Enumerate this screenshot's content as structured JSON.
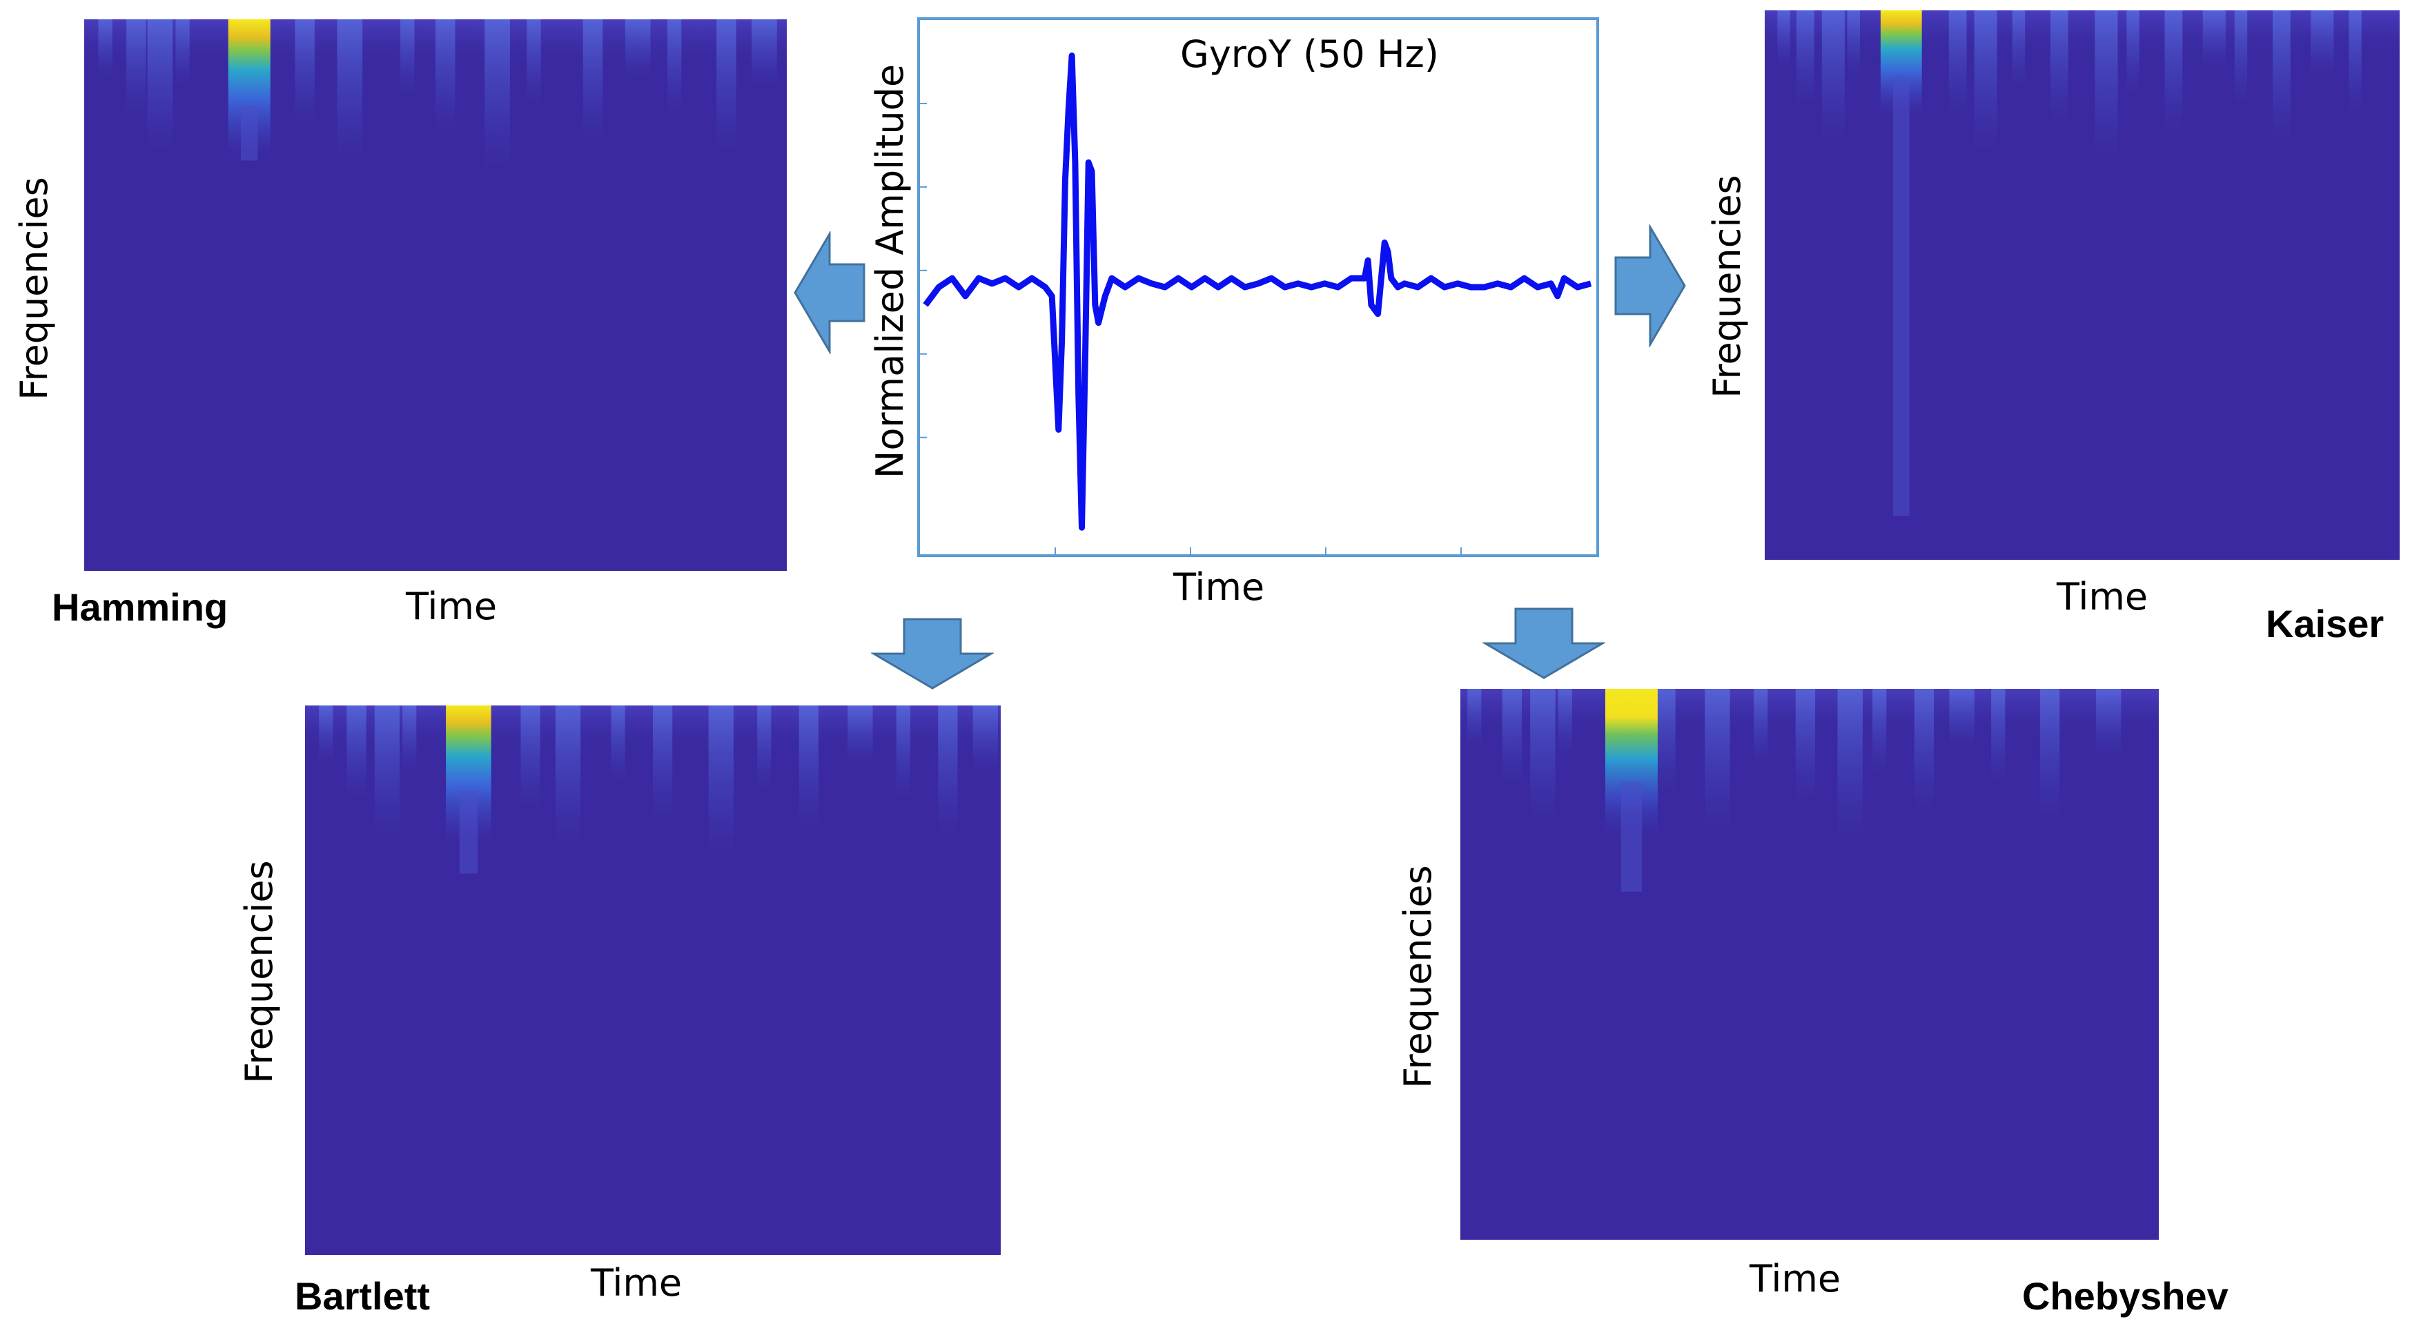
{
  "colors": {
    "spectrogram_bg": "#3a29a0",
    "signal_line": "#0a10f0",
    "frame_border": "#5b9bd5",
    "arrow_fill": "#5b9bd5",
    "arrow_stroke": "#41719c"
  },
  "signal": {
    "title": "GyroY (50 Hz)",
    "xlabel": "Time",
    "ylabel": "Normalized Amplitude"
  },
  "panels": {
    "hamming": {
      "name": "Hamming",
      "xlabel": "Time",
      "ylabel": "Frequencies"
    },
    "kaiser": {
      "name": "Kaiser",
      "xlabel": "Time",
      "ylabel": "Frequencies"
    },
    "bartlett": {
      "name": "Bartlett",
      "xlabel": "Time",
      "ylabel": "Frequencies"
    },
    "chebyshev": {
      "name": "Chebyshev",
      "xlabel": "Time",
      "ylabel": "Frequencies"
    }
  },
  "chart_data": [
    {
      "type": "line",
      "title": "GyroY (50 Hz)",
      "xlabel": "Time",
      "ylabel": "Normalized Amplitude",
      "xlim": [
        0,
        100
      ],
      "ylim": [
        -1.5,
        1.5
      ],
      "grid": false,
      "series": [
        {
          "x": [
            0,
            2,
            4,
            6,
            8,
            10,
            12,
            14,
            16,
            18,
            19,
            20,
            20.5,
            21,
            21.5,
            22,
            22.5,
            23,
            23.5,
            24,
            24.5,
            25,
            25.5,
            26,
            27,
            28,
            30,
            32,
            34,
            36,
            38,
            40,
            42,
            44,
            46,
            48,
            50,
            52,
            54,
            56,
            58,
            60,
            62,
            64,
            66,
            66.5,
            67,
            68,
            69,
            69.5,
            70,
            71,
            72,
            74,
            76,
            78,
            80,
            82,
            84,
            86,
            88,
            90,
            92,
            94,
            95,
            96,
            98,
            100
          ],
          "y": [
            -0.1,
            0,
            0.05,
            -0.05,
            0.05,
            0.02,
            0.05,
            0,
            0.05,
            0,
            -0.05,
            -0.8,
            -0.3,
            0.6,
            1.0,
            1.3,
            0.7,
            -0.6,
            -1.35,
            -0.4,
            0.7,
            0.65,
            -0.1,
            -0.2,
            -0.05,
            0.05,
            0.0,
            0.05,
            0.02,
            0.0,
            0.05,
            0.0,
            0.05,
            0.0,
            0.05,
            0.0,
            0.02,
            0.05,
            0.0,
            0.02,
            0.0,
            0.02,
            0.0,
            0.05,
            0.05,
            0.15,
            -0.1,
            -0.15,
            0.25,
            0.2,
            0.05,
            0.0,
            0.02,
            0.0,
            0.05,
            0.0,
            0.02,
            0.0,
            0.0,
            0.02,
            0.0,
            0.05,
            0.0,
            0.02,
            -0.05,
            0.05,
            0.0,
            0.02
          ]
        }
      ]
    },
    {
      "type": "heatmap",
      "name": "Hamming",
      "xlabel": "Time",
      "ylabel": "Frequencies",
      "peak_time_frac": 0.235,
      "hot_columns": [
        0.03,
        0.07,
        0.1,
        0.14,
        0.31,
        0.37,
        0.46,
        0.51,
        0.58,
        0.64,
        0.72,
        0.78,
        0.84,
        0.91,
        0.96
      ]
    },
    {
      "type": "heatmap",
      "name": "Kaiser",
      "xlabel": "Time",
      "ylabel": "Frequencies",
      "peak_time_frac": 0.215,
      "hot_columns": [
        0.03,
        0.06,
        0.1,
        0.14,
        0.3,
        0.34,
        0.4,
        0.46,
        0.53,
        0.58,
        0.64,
        0.7,
        0.75,
        0.81,
        0.87,
        0.93
      ]
    },
    {
      "type": "heatmap",
      "name": "Bartlett",
      "xlabel": "Time",
      "ylabel": "Frequencies",
      "peak_time_frac": 0.235,
      "hot_columns": [
        0.03,
        0.07,
        0.11,
        0.15,
        0.32,
        0.37,
        0.45,
        0.51,
        0.59,
        0.66,
        0.72,
        0.79,
        0.86,
        0.92,
        0.97
      ]
    },
    {
      "type": "heatmap",
      "name": "Chebyshev",
      "xlabel": "Time",
      "ylabel": "Frequencies",
      "peak_time_frac": 0.245,
      "hot_columns": [
        0.02,
        0.07,
        0.11,
        0.15,
        0.29,
        0.36,
        0.43,
        0.49,
        0.55,
        0.6,
        0.66,
        0.71,
        0.77,
        0.84,
        0.92
      ]
    }
  ]
}
